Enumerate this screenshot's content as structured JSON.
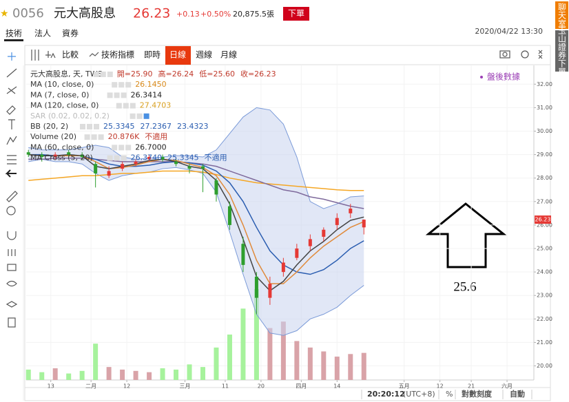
{
  "header": {
    "code": "0056",
    "name": "元大高股息",
    "price": "26.23",
    "change": "+0.13",
    "change_pct": "+0.50%",
    "volume": "20,875.5張",
    "order_button": "下單",
    "tabs": [
      "技術",
      "法人",
      "資券"
    ],
    "datetime": "2020/04/22 13:30",
    "side_tabs": [
      "聊天室",
      "玉山證券下單"
    ]
  },
  "toolbar": {
    "items": [
      "比較",
      "技術指標",
      "即時",
      "日線",
      "週線",
      "月線"
    ],
    "active": "日線"
  },
  "footer": {
    "time": "20:20:12",
    "timezone": "(UTC+8)",
    "percent": "%",
    "log_scale": "對數刻度",
    "auto": "自動"
  },
  "chart_data": {
    "type": "candlestick",
    "watermark": "盤後數據",
    "annotation": "25.6",
    "last_price": "26.23",
    "legend": [
      {
        "name": "元大高股息, 天, TWS",
        "items": [
          "開=25.90",
          "高=26.24",
          "低=25.60",
          "收=26.23"
        ],
        "color": "#c0392b"
      },
      {
        "name": "MA (10, close, 0)",
        "items": [
          "26.1450"
        ],
        "color": "#d98a1a"
      },
      {
        "name": "MA (7, close, 0)",
        "items": [
          "26.3414"
        ],
        "color": "#222222"
      },
      {
        "name": "MA (120, close, 0)",
        "items": [
          "27.4703"
        ],
        "color": "#d9a020"
      },
      {
        "name": "SAR (0.02, 0.02, 0.2)",
        "items": [],
        "color": "#bbbbbb"
      },
      {
        "name": "BB (20, 2)",
        "items": [
          "25.3345",
          "27.2367",
          "23.4323"
        ],
        "color": "#2a5db0"
      },
      {
        "name": "Volume (20)",
        "items": [
          "20.876K",
          "不適用"
        ],
        "color": "#c0392b"
      },
      {
        "name": "MA (60, close, 0)",
        "items": [
          "26.7000"
        ],
        "color": "#222222"
      },
      {
        "name": "MA Cross (5, 20)",
        "items": [
          "26.3740",
          "25.3345",
          "不適用"
        ],
        "color": "#2a5db0"
      }
    ],
    "x": [
      0,
      3,
      6,
      9,
      12,
      15,
      18,
      21,
      24,
      27,
      30,
      33,
      36,
      39,
      42,
      45,
      48,
      51,
      54,
      57,
      60,
      63,
      66,
      69,
      72,
      75
    ],
    "open": [
      29.1,
      29.0,
      28.9,
      29.1,
      29.0,
      28.6,
      28.1,
      28.4,
      28.6,
      28.8,
      28.9,
      28.7,
      28.5,
      28.5,
      27.9,
      26.8,
      25.2,
      23.8,
      22.9,
      24.0,
      24.6,
      25.1,
      25.5,
      26.0,
      26.5,
      25.9
    ],
    "high": [
      29.2,
      29.1,
      29.1,
      29.2,
      29.1,
      28.7,
      28.5,
      28.7,
      28.8,
      29.0,
      29.0,
      28.8,
      28.6,
      28.6,
      28.0,
      27.0,
      25.5,
      24.0,
      23.8,
      24.6,
      25.2,
      25.6,
      25.9,
      26.5,
      26.9,
      26.24
    ],
    "low": [
      28.9,
      28.7,
      28.8,
      28.9,
      28.8,
      27.6,
      28.0,
      28.3,
      28.5,
      28.7,
      28.7,
      28.5,
      28.2,
      27.4,
      27.0,
      25.8,
      24.0,
      22.2,
      22.6,
      23.8,
      24.5,
      24.9,
      25.3,
      25.8,
      26.3,
      25.6
    ],
    "close": [
      29.0,
      28.9,
      29.0,
      29.0,
      28.9,
      28.2,
      28.3,
      28.6,
      28.7,
      28.9,
      28.8,
      28.6,
      28.4,
      28.4,
      27.3,
      26.0,
      24.3,
      22.9,
      23.5,
      24.4,
      25.0,
      25.4,
      25.8,
      26.3,
      26.7,
      26.23
    ],
    "up_color": "#e53935",
    "down_color": "#2e9e2e",
    "series": [
      {
        "name": "BB upper",
        "color": "#7a9ad8",
        "values": [
          29.3,
          29.2,
          29.2,
          29.2,
          29.3,
          29.4,
          29.3,
          28.9,
          28.8,
          28.85,
          28.9,
          28.95,
          28.95,
          28.9,
          29.2,
          29.9,
          30.6,
          31.0,
          30.9,
          30.3,
          28.9,
          27.0,
          26.7,
          26.9,
          27.2,
          27.24
        ]
      },
      {
        "name": "BB lower",
        "color": "#7a9ad8",
        "values": [
          28.7,
          28.8,
          28.7,
          28.7,
          28.6,
          28.2,
          27.9,
          28.1,
          28.2,
          28.25,
          28.4,
          28.45,
          28.35,
          28.2,
          27.4,
          25.7,
          23.9,
          22.2,
          21.4,
          21.3,
          21.5,
          22.0,
          22.2,
          22.5,
          23.0,
          23.43
        ]
      },
      {
        "name": "MA 120",
        "color": "#f5a623",
        "values": [
          27.9,
          27.95,
          28.0,
          28.05,
          28.1,
          28.1,
          28.15,
          28.2,
          28.2,
          28.25,
          28.3,
          28.3,
          28.3,
          28.25,
          28.15,
          28.0,
          27.9,
          27.8,
          27.75,
          27.7,
          27.65,
          27.6,
          27.55,
          27.5,
          27.47,
          27.4703
        ]
      },
      {
        "name": "MA 60",
        "color": "#7e6a9c",
        "values": [
          28.8,
          28.8,
          28.85,
          28.85,
          28.85,
          28.8,
          28.75,
          28.7,
          28.7,
          28.7,
          28.7,
          28.7,
          28.65,
          28.6,
          28.5,
          28.3,
          28.1,
          27.9,
          27.7,
          27.5,
          27.4,
          27.2,
          27.1,
          26.95,
          26.8,
          26.7
        ]
      },
      {
        "name": "BB mid",
        "color": "#2a5db0",
        "values": [
          29.0,
          29.0,
          28.95,
          28.95,
          28.95,
          28.8,
          28.6,
          28.5,
          28.5,
          28.55,
          28.65,
          28.7,
          28.65,
          28.55,
          28.3,
          27.8,
          27.0,
          25.9,
          24.9,
          24.3,
          24.0,
          23.9,
          24.1,
          24.5,
          25.0,
          25.33
        ]
      },
      {
        "name": "MA 10",
        "color": "#e08a3a",
        "values": [
          29.0,
          28.95,
          28.95,
          28.95,
          28.95,
          28.7,
          28.4,
          28.45,
          28.55,
          28.7,
          28.8,
          28.75,
          28.6,
          28.45,
          28.1,
          27.3,
          26.0,
          24.5,
          23.5,
          23.5,
          24.0,
          24.6,
          25.1,
          25.5,
          25.9,
          26.145
        ]
      },
      {
        "name": "MA 7",
        "color": "#444444",
        "values": [
          29.0,
          28.95,
          28.95,
          29.0,
          28.95,
          28.5,
          28.4,
          28.5,
          28.6,
          28.75,
          28.8,
          28.7,
          28.5,
          28.4,
          27.9,
          26.9,
          25.4,
          23.8,
          23.2,
          23.6,
          24.3,
          24.9,
          25.3,
          25.8,
          26.2,
          26.34
        ]
      }
    ],
    "bb_fill": "#c9d3ef",
    "volume": [
      8,
      6,
      9,
      5,
      7,
      28,
      10,
      8,
      7,
      6,
      9,
      8,
      12,
      10,
      25,
      35,
      55,
      70,
      40,
      45,
      30,
      25,
      22,
      18,
      20,
      20.876
    ],
    "volume_lim": [
      0,
      80
    ],
    "volume_up_color": "#d9a3a8",
    "volume_down_color": "#a6f29c",
    "xlim": [
      -0.5,
      113
    ],
    "xticks": [
      {
        "value": 5,
        "label": "13"
      },
      {
        "value": 14,
        "label": "二月"
      },
      {
        "value": 22,
        "label": "12"
      },
      {
        "value": 35,
        "label": "三月"
      },
      {
        "value": 44,
        "label": "11"
      },
      {
        "value": 52,
        "label": "20"
      },
      {
        "value": 61,
        "label": "四月"
      },
      {
        "value": 69,
        "label": "14"
      },
      {
        "value": 84,
        "label": "五月"
      },
      {
        "value": 92,
        "label": "12"
      },
      {
        "value": 99,
        "label": "21"
      },
      {
        "value": 107,
        "label": "六月"
      }
    ],
    "ylim": [
      19.4,
      32.8
    ],
    "yticks": [
      {
        "value": 20,
        "label": "20.00"
      },
      {
        "value": 21,
        "label": "21.00"
      },
      {
        "value": 22,
        "label": "22.00"
      },
      {
        "value": 23,
        "label": "23.00"
      },
      {
        "value": 24,
        "label": "24.00"
      },
      {
        "value": 25,
        "label": "25.00"
      },
      {
        "value": 26,
        "label": "26.00"
      },
      {
        "value": 27,
        "label": "27.00"
      },
      {
        "value": 28,
        "label": "28.00"
      },
      {
        "value": 29,
        "label": "29.00"
      },
      {
        "value": 30,
        "label": "30.00"
      },
      {
        "value": 31,
        "label": "31.00"
      },
      {
        "value": 32,
        "label": "32.00"
      }
    ],
    "grid": true
  }
}
